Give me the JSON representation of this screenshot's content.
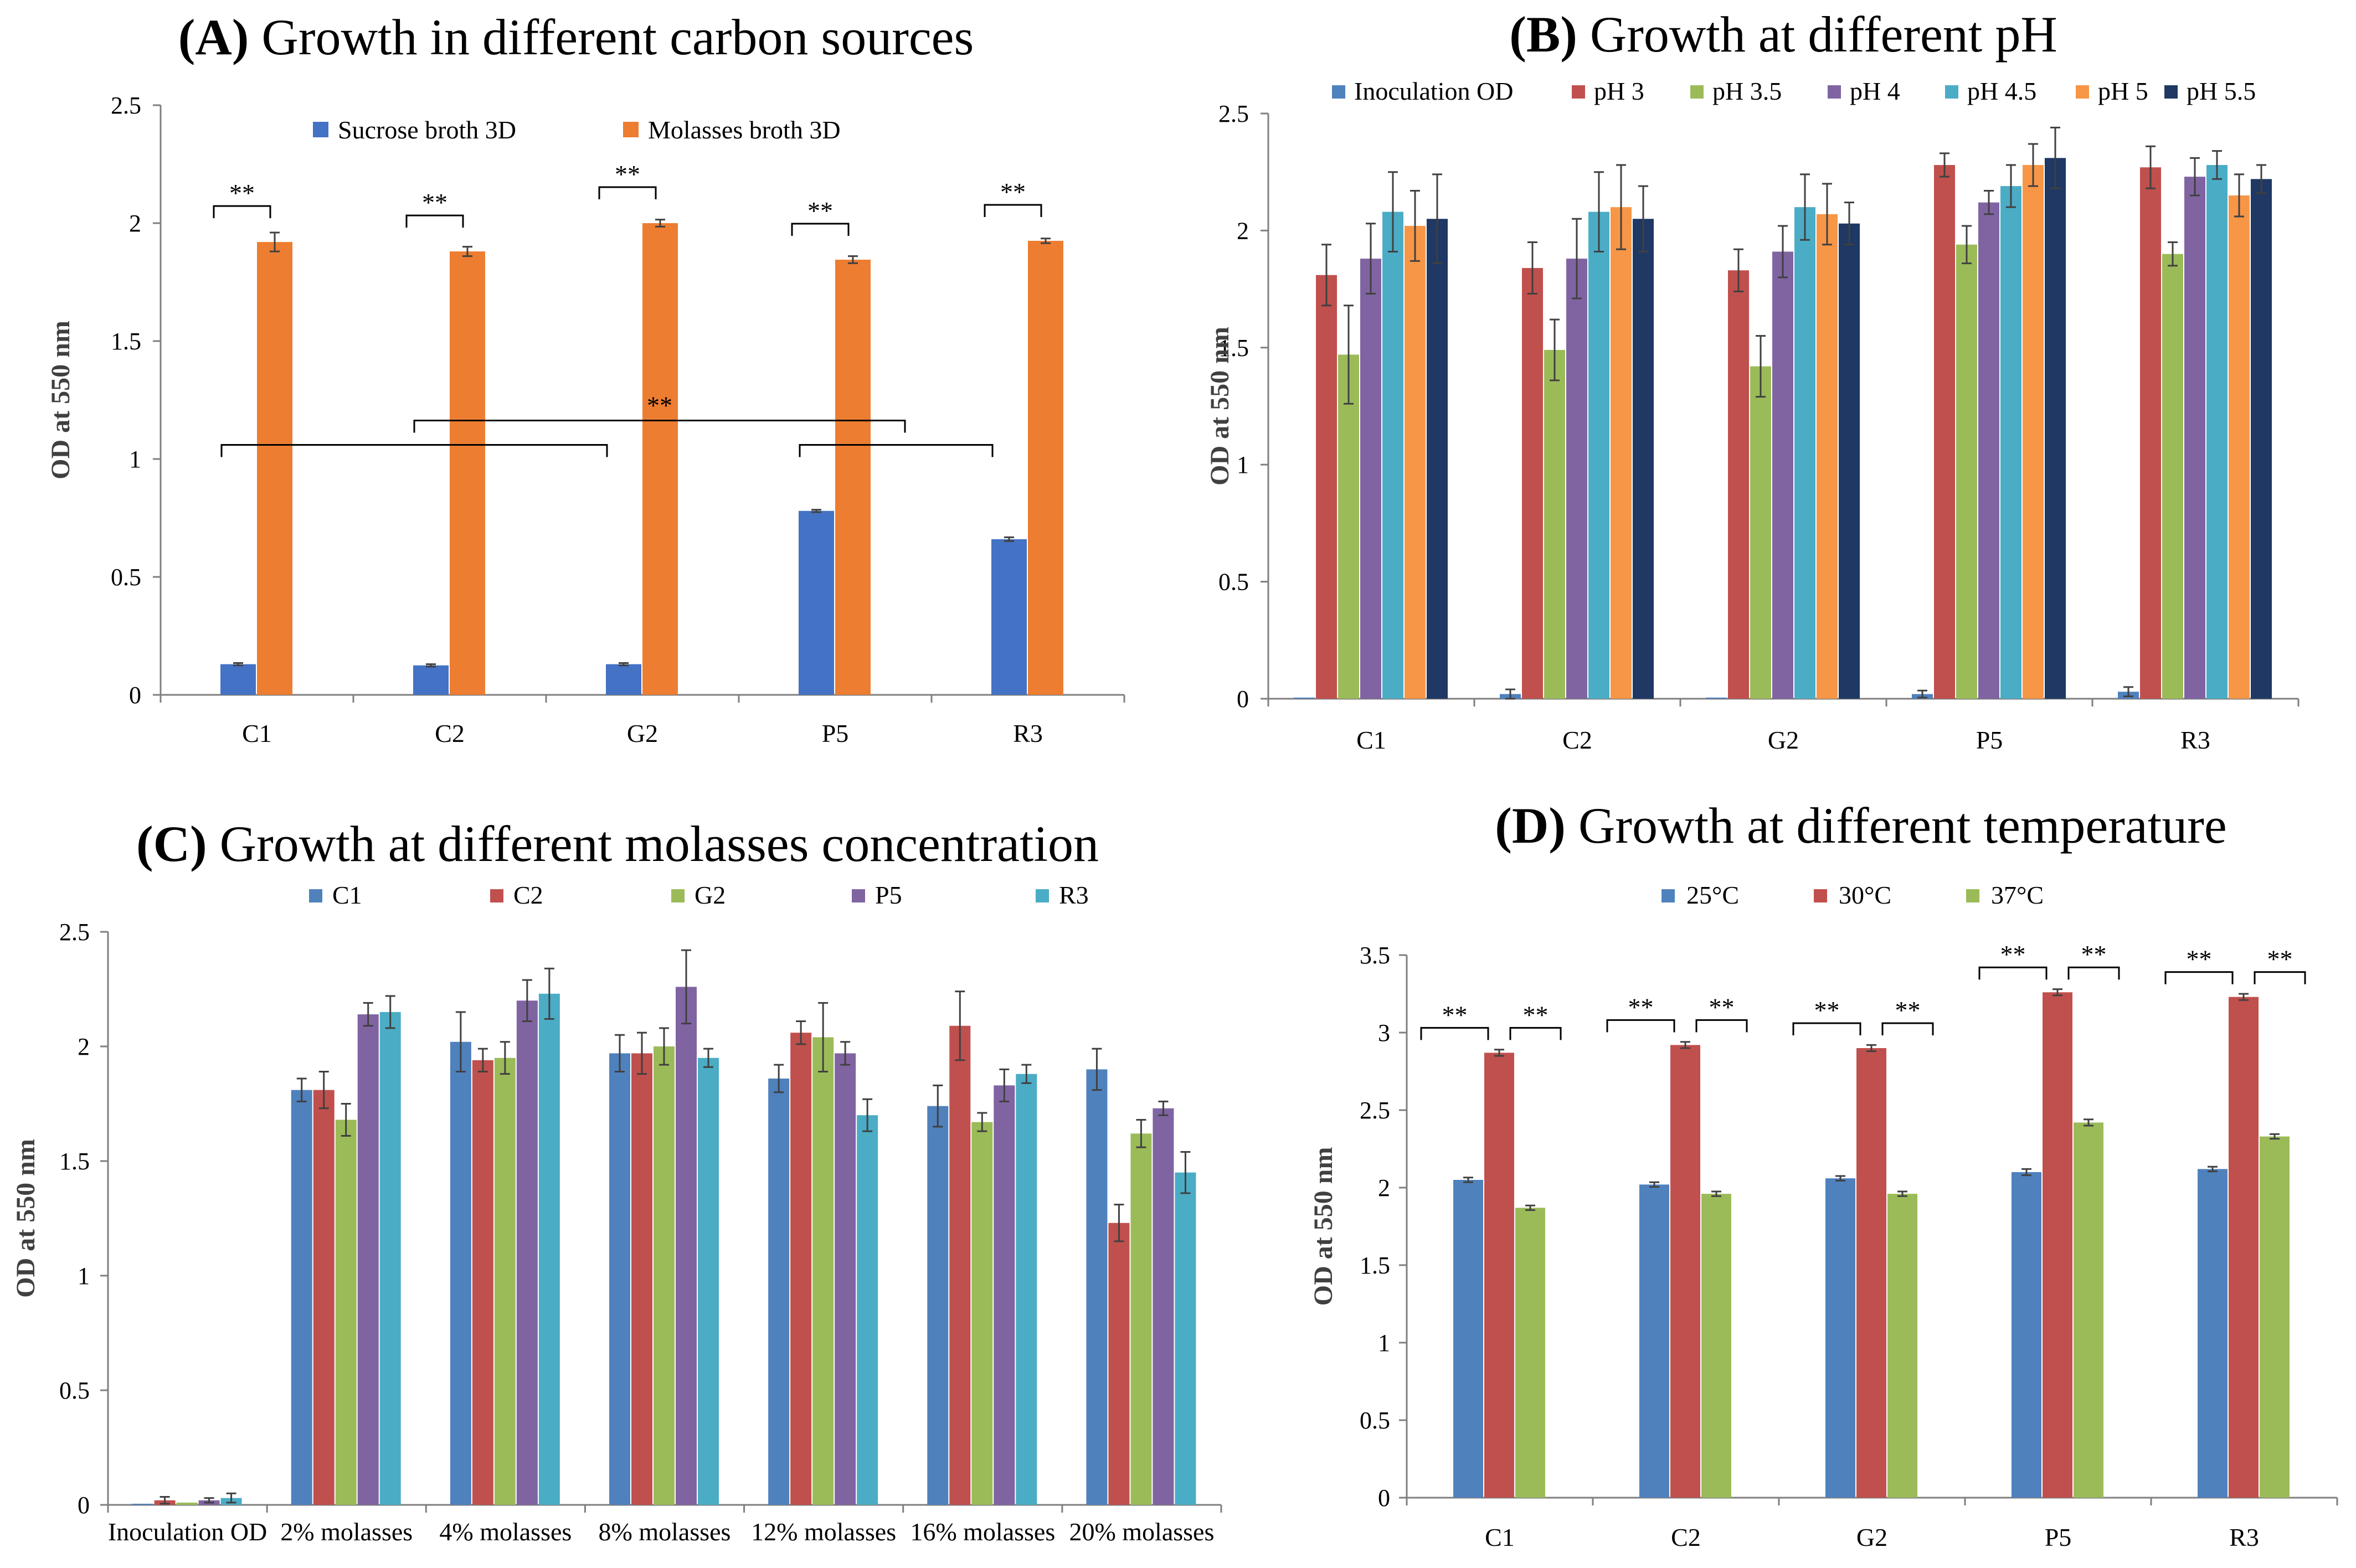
{
  "figure": "Four-panel bacterial growth figure",
  "chart_data": [
    {
      "id": "A",
      "type": "bar",
      "title_letter": "(A)",
      "title": "Growth in different carbon sources",
      "ylabel": "OD at 550 nm",
      "xlabel": "",
      "ylim": [
        0,
        2.5
      ],
      "yticks": [
        0,
        0.5,
        1,
        1.5,
        2,
        2.5
      ],
      "ytick_labels": [
        "0",
        "0.5",
        "1",
        "1.5",
        "2",
        "2.5"
      ],
      "grid": false,
      "legend_position": "top",
      "categories": [
        "C1",
        "C2",
        "G2",
        "P5",
        "R3"
      ],
      "series": [
        {
          "name": "Sucrose broth 3D",
          "color": "#4472C4",
          "values": [
            0.13,
            0.125,
            0.13,
            0.78,
            0.66
          ],
          "errors": [
            0.005,
            0.005,
            0.005,
            0.005,
            0.008
          ]
        },
        {
          "name": "Molasses broth 3D",
          "color": "#ED7D31",
          "values": [
            1.92,
            1.88,
            2.0,
            1.845,
            1.925
          ],
          "errors": [
            0.04,
            0.02,
            0.015,
            0.015,
            0.01
          ]
        }
      ],
      "significance_label": "**",
      "pair_brackets": [
        0,
        1,
        2,
        3,
        4
      ],
      "group_bracket_label": "**"
    },
    {
      "id": "B",
      "type": "bar",
      "title_letter": "(B)",
      "title": "Growth at different pH",
      "ylabel": "OD at 550 nm",
      "xlabel": "",
      "ylim": [
        0,
        2.5
      ],
      "yticks": [
        0,
        0.5,
        1,
        1.5,
        2,
        2.5
      ],
      "ytick_labels": [
        "0",
        "0.5",
        "1",
        "1.5",
        "2",
        "2.5"
      ],
      "grid": false,
      "legend_position": "top",
      "categories": [
        "C1",
        "C2",
        "G2",
        "P5",
        "R3"
      ],
      "series": [
        {
          "name": "Inoculation OD",
          "color": "#4F81BD",
          "values": [
            0.005,
            0.02,
            0.005,
            0.02,
            0.03
          ],
          "errors": [
            0.0,
            0.02,
            0.0,
            0.015,
            0.02
          ]
        },
        {
          "name": "pH 3",
          "color": "#C0504D",
          "values": [
            1.81,
            1.84,
            1.83,
            2.28,
            2.27
          ],
          "errors": [
            0.13,
            0.11,
            0.09,
            0.05,
            0.09
          ]
        },
        {
          "name": "pH 3.5",
          "color": "#9BBB59",
          "values": [
            1.47,
            1.49,
            1.42,
            1.94,
            1.9
          ],
          "errors": [
            0.21,
            0.13,
            0.13,
            0.08,
            0.05
          ]
        },
        {
          "name": "pH 4",
          "color": "#8064A2",
          "values": [
            1.88,
            1.88,
            1.91,
            2.12,
            2.23
          ],
          "errors": [
            0.15,
            0.17,
            0.11,
            0.05,
            0.08
          ]
        },
        {
          "name": "pH 4.5",
          "color": "#4BACC6",
          "values": [
            2.08,
            2.08,
            2.1,
            2.19,
            2.28
          ],
          "errors": [
            0.17,
            0.17,
            0.14,
            0.09,
            0.06
          ]
        },
        {
          "name": "pH 5",
          "color": "#F79646",
          "values": [
            2.02,
            2.1,
            2.07,
            2.28,
            2.15
          ],
          "errors": [
            0.15,
            0.18,
            0.13,
            0.09,
            0.09
          ]
        },
        {
          "name": "pH 5.5",
          "color": "#1F3864",
          "values": [
            2.05,
            2.05,
            2.03,
            2.31,
            2.22
          ],
          "errors": [
            0.19,
            0.14,
            0.09,
            0.13,
            0.06
          ]
        }
      ]
    },
    {
      "id": "C",
      "type": "bar",
      "title_letter": "(C)",
      "title": "Growth at different molasses concentration",
      "ylabel": "OD at 550 nm",
      "xlabel": "",
      "ylim": [
        0,
        2.5
      ],
      "yticks": [
        0,
        0.5,
        1,
        1.5,
        2,
        2.5
      ],
      "ytick_labels": [
        "0",
        "0.5",
        "1",
        "1.5",
        "2",
        "2.5"
      ],
      "grid": false,
      "legend_position": "top",
      "categories": [
        "Inoculation OD",
        "2% molasses",
        "4% molasses",
        "8% molasses",
        "12% molasses",
        "16% molasses",
        "20% molasses"
      ],
      "series": [
        {
          "name": "C1",
          "color": "#4F81BD",
          "values": [
            0.005,
            1.81,
            2.02,
            1.97,
            1.86,
            1.74,
            1.9
          ],
          "errors": [
            0.0,
            0.05,
            0.13,
            0.08,
            0.06,
            0.09,
            0.09
          ]
        },
        {
          "name": "C2",
          "color": "#C0504D",
          "values": [
            0.02,
            1.81,
            1.94,
            1.97,
            2.06,
            2.09,
            1.23
          ],
          "errors": [
            0.015,
            0.08,
            0.05,
            0.09,
            0.05,
            0.15,
            0.08
          ]
        },
        {
          "name": "G2",
          "color": "#9BBB59",
          "values": [
            0.01,
            1.68,
            1.95,
            2.0,
            2.04,
            1.67,
            1.62
          ],
          "errors": [
            0.0,
            0.07,
            0.07,
            0.08,
            0.15,
            0.04,
            0.06
          ]
        },
        {
          "name": "P5",
          "color": "#8064A2",
          "values": [
            0.02,
            2.14,
            2.2,
            2.26,
            1.97,
            1.83,
            1.73
          ],
          "errors": [
            0.01,
            0.05,
            0.09,
            0.16,
            0.05,
            0.07,
            0.03
          ]
        },
        {
          "name": "R3",
          "color": "#4BACC6",
          "values": [
            0.03,
            2.15,
            2.23,
            1.95,
            1.7,
            1.88,
            1.45
          ],
          "errors": [
            0.02,
            0.07,
            0.11,
            0.04,
            0.07,
            0.04,
            0.09
          ]
        }
      ]
    },
    {
      "id": "D",
      "type": "bar",
      "title_letter": "(D)",
      "title": "Growth at different temperature",
      "ylabel": "OD at 550 nm",
      "xlabel": "",
      "ylim": [
        0,
        3.5
      ],
      "yticks": [
        0,
        0.5,
        1,
        1.5,
        2,
        2.5,
        3,
        3.5
      ],
      "ytick_labels": [
        "0",
        "0.5",
        "1",
        "1.5",
        "2",
        "2.5",
        "3",
        "3.5"
      ],
      "grid": false,
      "legend_position": "top",
      "categories": [
        "C1",
        "C2",
        "G2",
        "P5",
        "R3"
      ],
      "series": [
        {
          "name": "25°C",
          "color": "#4F81BD",
          "values": [
            2.05,
            2.02,
            2.06,
            2.1,
            2.12
          ],
          "errors": [
            0.015,
            0.015,
            0.015,
            0.02,
            0.015
          ]
        },
        {
          "name": "30°C",
          "color": "#C0504D",
          "values": [
            2.87,
            2.92,
            2.9,
            3.26,
            3.23
          ],
          "errors": [
            0.02,
            0.02,
            0.02,
            0.02,
            0.02
          ]
        },
        {
          "name": "37°C",
          "color": "#9BBB59",
          "values": [
            1.87,
            1.96,
            1.96,
            2.42,
            2.33
          ],
          "errors": [
            0.015,
            0.015,
            0.015,
            0.02,
            0.015
          ]
        }
      ],
      "significance_label": "**"
    }
  ]
}
